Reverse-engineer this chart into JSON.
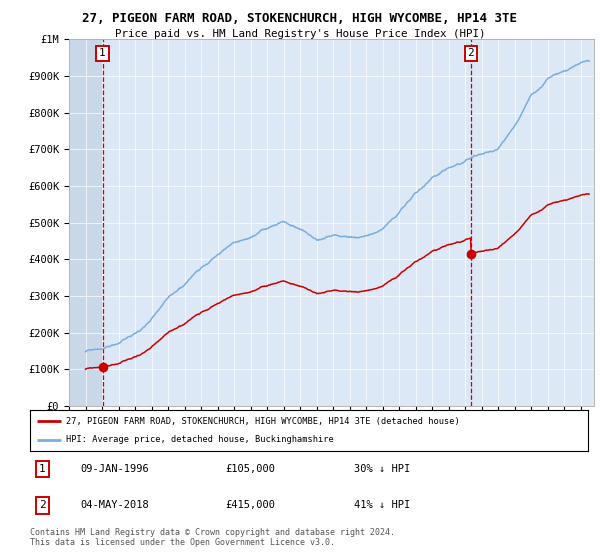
{
  "title_line1": "27, PIGEON FARM ROAD, STOKENCHURCH, HIGH WYCOMBE, HP14 3TE",
  "title_line2": "Price paid vs. HM Land Registry's House Price Index (HPI)",
  "ylim": [
    0,
    1000000
  ],
  "xlim_start": 1994.0,
  "xlim_end": 2025.8,
  "hpi_color": "#7aaedc",
  "price_color": "#cc0000",
  "background_plot": "#dce8f5",
  "background_hatch": "#c8d8e8",
  "sale1_x": 1996.03,
  "sale1_y": 105000,
  "sale1_label": "1",
  "sale2_x": 2018.34,
  "sale2_y": 415000,
  "sale2_label": "2",
  "legend_line1": "27, PIGEON FARM ROAD, STOKENCHURCH, HIGH WYCOMBE, HP14 3TE (detached house)",
  "legend_line2": "HPI: Average price, detached house, Buckinghamshire",
  "annotation1_date": "09-JAN-1996",
  "annotation1_price": "£105,000",
  "annotation1_hpi": "30% ↓ HPI",
  "annotation2_date": "04-MAY-2018",
  "annotation2_price": "£415,000",
  "annotation2_hpi": "41% ↓ HPI",
  "footer": "Contains HM Land Registry data © Crown copyright and database right 2024.\nThis data is licensed under the Open Government Licence v3.0.",
  "yticks": [
    0,
    100000,
    200000,
    300000,
    400000,
    500000,
    600000,
    700000,
    800000,
    900000,
    1000000
  ],
  "ytick_labels": [
    "£0",
    "£100K",
    "£200K",
    "£300K",
    "£400K",
    "£500K",
    "£600K",
    "£700K",
    "£800K",
    "£900K",
    "£1M"
  ]
}
